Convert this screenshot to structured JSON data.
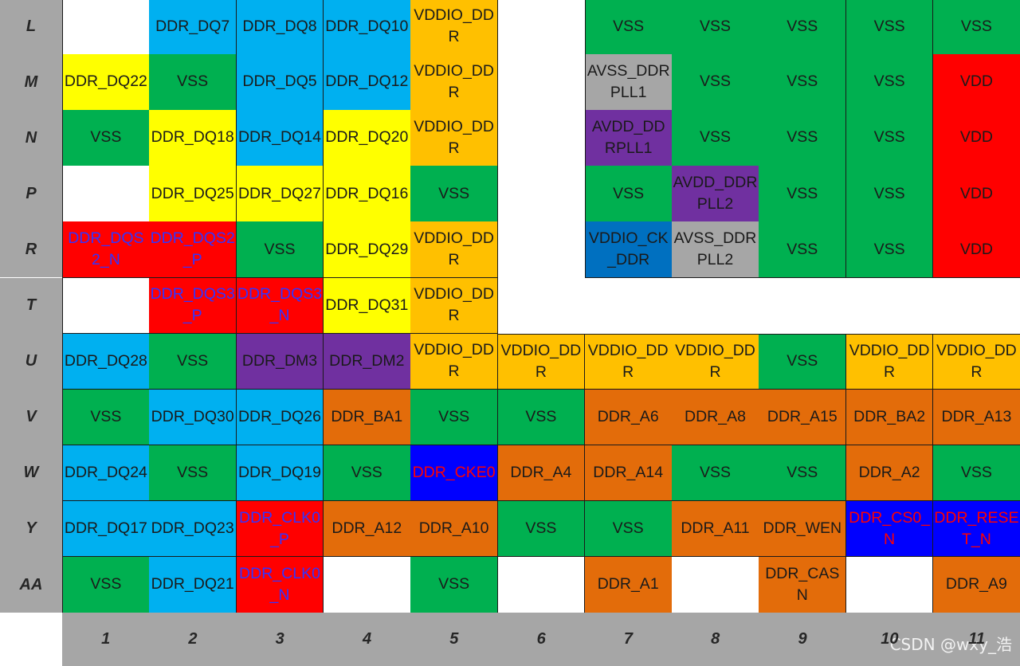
{
  "colors": {
    "white": "#ffffff",
    "ddr_dq_blue": "#00b0f0",
    "ddr_dq_yellow": "#ffff00",
    "vss_green": "#00b050",
    "vddio_orange": "#ffc000",
    "avss_gray": "#a6a6a6",
    "avdd_purple": "#7030a0",
    "vdd_red": "#ff0000",
    "ddr_addr_orange": "#e36c0a",
    "vddio_ck_blue": "#0070c0",
    "cke_blue": "#0000ff",
    "text_default": "#1a1a1a",
    "text_red": "#ff0000",
    "text_blue": "#3333ff"
  },
  "row_labels": [
    "L",
    "M",
    "N",
    "P",
    "R",
    "T",
    "U",
    "V",
    "W",
    "Y",
    "AA"
  ],
  "col_labels": [
    "1",
    "2",
    "3",
    "4",
    "5",
    "6",
    "7",
    "8",
    "9",
    "10",
    "11"
  ],
  "grid": [
    [
      {
        "t": "",
        "c": "white"
      },
      {
        "t": "DDR_DQ7",
        "c": "ddr_dq_blue"
      },
      {
        "t": "DDR_DQ8",
        "c": "ddr_dq_blue"
      },
      {
        "t": "DDR_DQ10",
        "c": "ddr_dq_blue"
      },
      {
        "t": "VDDIO_DDR",
        "c": "vddio_orange"
      },
      null,
      {
        "t": "VSS",
        "c": "vss_green"
      },
      {
        "t": "VSS",
        "c": "vss_green"
      },
      {
        "t": "VSS",
        "c": "vss_green"
      },
      {
        "t": "VSS",
        "c": "vss_green"
      },
      {
        "t": "VSS",
        "c": "vss_green"
      }
    ],
    [
      {
        "t": "DDR_DQ22",
        "c": "ddr_dq_yellow"
      },
      {
        "t": "VSS",
        "c": "vss_green"
      },
      {
        "t": "DDR_DQ5",
        "c": "ddr_dq_blue"
      },
      {
        "t": "DDR_DQ12",
        "c": "ddr_dq_blue"
      },
      {
        "t": "VDDIO_DDR",
        "c": "vddio_orange"
      },
      null,
      {
        "t": "AVSS_DDRPLL1",
        "c": "avss_gray"
      },
      {
        "t": "VSS",
        "c": "vss_green"
      },
      {
        "t": "VSS",
        "c": "vss_green"
      },
      {
        "t": "VSS",
        "c": "vss_green"
      },
      {
        "t": "VDD",
        "c": "vdd_red"
      }
    ],
    [
      {
        "t": "VSS",
        "c": "vss_green"
      },
      {
        "t": "DDR_DQ18",
        "c": "ddr_dq_yellow"
      },
      {
        "t": "DDR_DQ14",
        "c": "ddr_dq_blue"
      },
      {
        "t": "DDR_DQ20",
        "c": "ddr_dq_yellow"
      },
      {
        "t": "VDDIO_DDR",
        "c": "vddio_orange"
      },
      null,
      {
        "t": "AVDD_DDRPLL1",
        "c": "avdd_purple"
      },
      {
        "t": "VSS",
        "c": "vss_green"
      },
      {
        "t": "VSS",
        "c": "vss_green"
      },
      {
        "t": "VSS",
        "c": "vss_green"
      },
      {
        "t": "VDD",
        "c": "vdd_red"
      }
    ],
    [
      {
        "t": "",
        "c": "white"
      },
      {
        "t": "DDR_DQ25",
        "c": "ddr_dq_yellow"
      },
      {
        "t": "DDR_DQ27",
        "c": "ddr_dq_yellow"
      },
      {
        "t": "DDR_DQ16",
        "c": "ddr_dq_yellow"
      },
      {
        "t": "VSS",
        "c": "vss_green"
      },
      null,
      {
        "t": "VSS",
        "c": "vss_green"
      },
      {
        "t": "AVDD_DDRPLL2",
        "c": "avdd_purple"
      },
      {
        "t": "VSS",
        "c": "vss_green"
      },
      {
        "t": "VSS",
        "c": "vss_green"
      },
      {
        "t": "VDD",
        "c": "vdd_red"
      }
    ],
    [
      {
        "t": "DDR_DQS2_N",
        "c": "vdd_red",
        "tc": "text_blue"
      },
      {
        "t": "DDR_DQS2_P",
        "c": "vdd_red",
        "tc": "text_blue"
      },
      {
        "t": "VSS",
        "c": "vss_green"
      },
      {
        "t": "DDR_DQ29",
        "c": "ddr_dq_yellow"
      },
      {
        "t": "VDDIO_DDR",
        "c": "vddio_orange"
      },
      null,
      {
        "t": "VDDIO_CK_DDR",
        "c": "vddio_ck_blue"
      },
      {
        "t": "AVSS_DDRPLL2",
        "c": "avss_gray"
      },
      {
        "t": "VSS",
        "c": "vss_green"
      },
      {
        "t": "VSS",
        "c": "vss_green"
      },
      {
        "t": "VDD",
        "c": "vdd_red"
      }
    ],
    [
      {
        "t": "",
        "c": "white"
      },
      {
        "t": "DDR_DQS3_P",
        "c": "vdd_red",
        "tc": "text_blue"
      },
      {
        "t": "DDR_DQS3_N",
        "c": "vdd_red",
        "tc": "text_blue"
      },
      {
        "t": "DDR_DQ31",
        "c": "ddr_dq_yellow"
      },
      {
        "t": "VDDIO_DDR",
        "c": "vddio_orange"
      },
      null,
      null,
      null,
      null,
      null,
      null
    ],
    [
      {
        "t": "DDR_DQ28",
        "c": "ddr_dq_blue"
      },
      {
        "t": "VSS",
        "c": "vss_green"
      },
      {
        "t": "DDR_DM3",
        "c": "avdd_purple"
      },
      {
        "t": "DDR_DM2",
        "c": "avdd_purple"
      },
      {
        "t": "VDDIO_DDR",
        "c": "vddio_orange"
      },
      {
        "t": "VDDIO_DDR",
        "c": "vddio_orange"
      },
      {
        "t": "VDDIO_DDR",
        "c": "vddio_orange"
      },
      {
        "t": "VDDIO_DDR",
        "c": "vddio_orange"
      },
      {
        "t": "VSS",
        "c": "vss_green"
      },
      {
        "t": "VDDIO_DDR",
        "c": "vddio_orange"
      },
      {
        "t": "VDDIO_DDR",
        "c": "vddio_orange"
      }
    ],
    [
      {
        "t": "VSS",
        "c": "vss_green"
      },
      {
        "t": "DDR_DQ30",
        "c": "ddr_dq_blue"
      },
      {
        "t": "DDR_DQ26",
        "c": "ddr_dq_blue"
      },
      {
        "t": "DDR_BA1",
        "c": "ddr_addr_orange"
      },
      {
        "t": "VSS",
        "c": "vss_green"
      },
      {
        "t": "VSS",
        "c": "vss_green"
      },
      {
        "t": "DDR_A6",
        "c": "ddr_addr_orange"
      },
      {
        "t": "DDR_A8",
        "c": "ddr_addr_orange"
      },
      {
        "t": "DDR_A15",
        "c": "ddr_addr_orange"
      },
      {
        "t": "DDR_BA2",
        "c": "ddr_addr_orange"
      },
      {
        "t": "DDR_A13",
        "c": "ddr_addr_orange"
      }
    ],
    [
      {
        "t": "DDR_DQ24",
        "c": "ddr_dq_blue"
      },
      {
        "t": "VSS",
        "c": "vss_green"
      },
      {
        "t": "DDR_DQ19",
        "c": "ddr_dq_blue"
      },
      {
        "t": "VSS",
        "c": "vss_green"
      },
      {
        "t": "DDR_CKE0",
        "c": "cke_blue",
        "tc": "text_red"
      },
      {
        "t": "DDR_A4",
        "c": "ddr_addr_orange"
      },
      {
        "t": "DDR_A14",
        "c": "ddr_addr_orange"
      },
      {
        "t": "VSS",
        "c": "vss_green"
      },
      {
        "t": "VSS",
        "c": "vss_green"
      },
      {
        "t": "DDR_A2",
        "c": "ddr_addr_orange"
      },
      {
        "t": "VSS",
        "c": "vss_green"
      }
    ],
    [
      {
        "t": "DDR_DQ17",
        "c": "ddr_dq_blue"
      },
      {
        "t": "DDR_DQ23",
        "c": "ddr_dq_blue"
      },
      {
        "t": "DDR_CLK0_P",
        "c": "vdd_red",
        "tc": "text_blue"
      },
      {
        "t": "DDR_A12",
        "c": "ddr_addr_orange"
      },
      {
        "t": "DDR_A10",
        "c": "ddr_addr_orange"
      },
      {
        "t": "VSS",
        "c": "vss_green"
      },
      {
        "t": "VSS",
        "c": "vss_green"
      },
      {
        "t": "DDR_A11",
        "c": "ddr_addr_orange"
      },
      {
        "t": "DDR_WEN",
        "c": "ddr_addr_orange"
      },
      {
        "t": "DDR_CS0_N",
        "c": "cke_blue",
        "tc": "text_red"
      },
      {
        "t": "DDR_RESET_N",
        "c": "cke_blue",
        "tc": "text_red"
      }
    ],
    [
      {
        "t": "VSS",
        "c": "vss_green"
      },
      {
        "t": "DDR_DQ21",
        "c": "ddr_dq_blue"
      },
      {
        "t": "DDR_CLK0_N",
        "c": "vdd_red",
        "tc": "text_blue"
      },
      {
        "t": "",
        "c": "white"
      },
      {
        "t": "VSS",
        "c": "vss_green"
      },
      {
        "t": "",
        "c": "white"
      },
      {
        "t": "DDR_A1",
        "c": "ddr_addr_orange"
      },
      {
        "t": "",
        "c": "white"
      },
      {
        "t": "DDR_CASN",
        "c": "ddr_addr_orange"
      },
      {
        "t": "",
        "c": "white"
      },
      {
        "t": "DDR_A9",
        "c": "ddr_addr_orange"
      }
    ]
  ],
  "watermark": "CSDN @wxy_浩"
}
